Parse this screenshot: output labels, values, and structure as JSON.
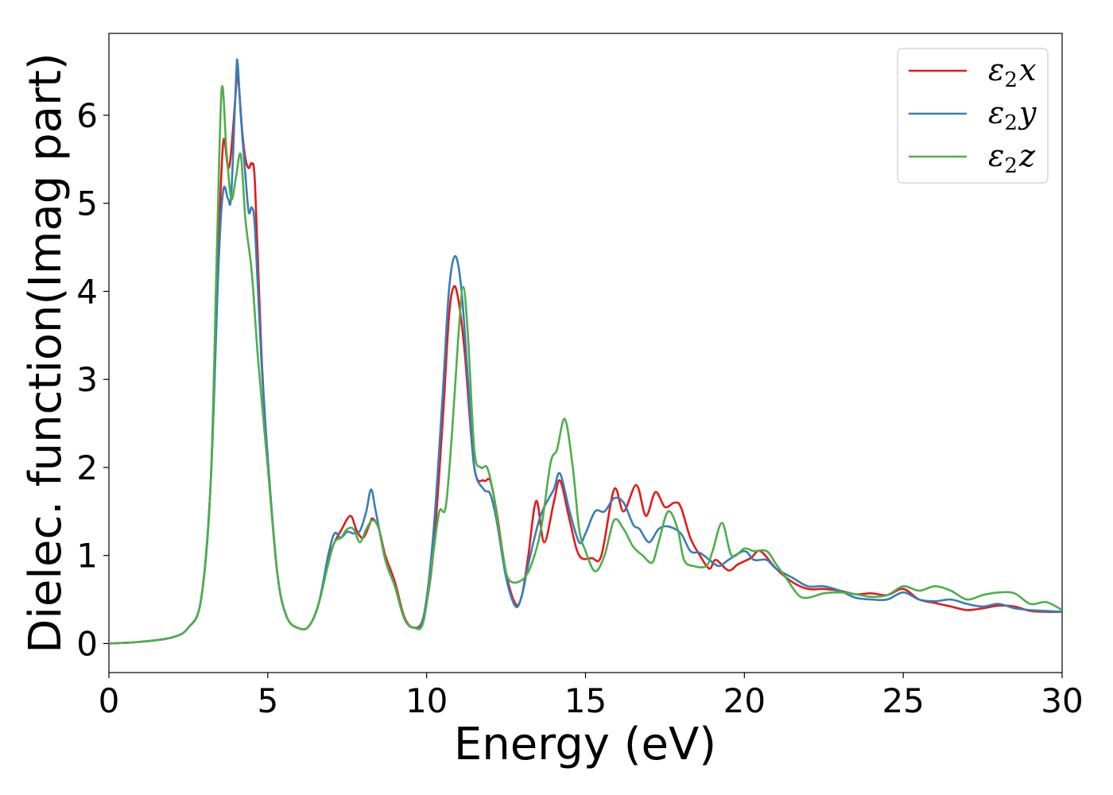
{
  "chart_data": {
    "type": "line",
    "title": "",
    "xlabel": "Energy (eV)",
    "ylabel": "Dielec. function(Imag part)",
    "xlim": [
      0,
      30
    ],
    "ylim": [
      -0.33,
      6.93
    ],
    "xticks": [
      0,
      5,
      10,
      15,
      20,
      25,
      30
    ],
    "yticks": [
      0,
      1,
      2,
      3,
      4,
      5,
      6
    ],
    "grid": false,
    "legend_position": "top-right",
    "series": [
      {
        "name": "ε2x",
        "legend_base": "ε",
        "legend_sub": "2",
        "legend_var": "x",
        "color": "#e41a1c",
        "points": [
          [
            0,
            0.0
          ],
          [
            1,
            0.02
          ],
          [
            2,
            0.07
          ],
          [
            2.5,
            0.18
          ],
          [
            2.9,
            0.5
          ],
          [
            3.2,
            1.8
          ],
          [
            3.45,
            4.5
          ],
          [
            3.6,
            5.7
          ],
          [
            3.75,
            5.4
          ],
          [
            3.85,
            5.6
          ],
          [
            4.0,
            6.3
          ],
          [
            4.05,
            6.5
          ],
          [
            4.2,
            5.8
          ],
          [
            4.3,
            5.5
          ],
          [
            4.4,
            5.4
          ],
          [
            4.5,
            5.45
          ],
          [
            4.6,
            5.2
          ],
          [
            4.8,
            3.3
          ],
          [
            5.0,
            2.1
          ],
          [
            5.3,
            0.8
          ],
          [
            5.6,
            0.3
          ],
          [
            6.0,
            0.17
          ],
          [
            6.3,
            0.2
          ],
          [
            6.6,
            0.45
          ],
          [
            6.9,
            0.95
          ],
          [
            7.1,
            1.15
          ],
          [
            7.3,
            1.28
          ],
          [
            7.6,
            1.45
          ],
          [
            7.8,
            1.28
          ],
          [
            8.0,
            1.2
          ],
          [
            8.2,
            1.35
          ],
          [
            8.3,
            1.42
          ],
          [
            8.5,
            1.3
          ],
          [
            8.7,
            1.0
          ],
          [
            9.0,
            0.7
          ],
          [
            9.3,
            0.3
          ],
          [
            9.6,
            0.18
          ],
          [
            9.9,
            0.3
          ],
          [
            10.2,
            1.0
          ],
          [
            10.5,
            2.5
          ],
          [
            10.7,
            3.7
          ],
          [
            10.85,
            4.05
          ],
          [
            11.0,
            3.9
          ],
          [
            11.2,
            3.3
          ],
          [
            11.5,
            2.0
          ],
          [
            11.8,
            1.85
          ],
          [
            12.0,
            1.85
          ],
          [
            12.2,
            1.5
          ],
          [
            12.5,
            0.8
          ],
          [
            12.8,
            0.45
          ],
          [
            13.0,
            0.55
          ],
          [
            13.2,
            1.0
          ],
          [
            13.45,
            1.62
          ],
          [
            13.7,
            1.15
          ],
          [
            14.0,
            1.6
          ],
          [
            14.2,
            1.85
          ],
          [
            14.5,
            1.4
          ],
          [
            14.8,
            1.0
          ],
          [
            15.2,
            0.97
          ],
          [
            15.5,
            1.0
          ],
          [
            15.9,
            1.75
          ],
          [
            16.2,
            1.5
          ],
          [
            16.6,
            1.8
          ],
          [
            16.9,
            1.45
          ],
          [
            17.2,
            1.72
          ],
          [
            17.5,
            1.55
          ],
          [
            17.8,
            1.6
          ],
          [
            18.0,
            1.55
          ],
          [
            18.3,
            1.2
          ],
          [
            18.6,
            1.0
          ],
          [
            18.9,
            0.85
          ],
          [
            19.1,
            0.95
          ],
          [
            19.5,
            0.83
          ],
          [
            19.8,
            0.9
          ],
          [
            20.2,
            0.97
          ],
          [
            20.5,
            1.05
          ],
          [
            21.0,
            0.85
          ],
          [
            21.5,
            0.7
          ],
          [
            22.0,
            0.62
          ],
          [
            22.5,
            0.62
          ],
          [
            23.0,
            0.6
          ],
          [
            23.5,
            0.56
          ],
          [
            24.0,
            0.57
          ],
          [
            24.5,
            0.55
          ],
          [
            25.0,
            0.62
          ],
          [
            25.5,
            0.5
          ],
          [
            26.0,
            0.46
          ],
          [
            26.5,
            0.42
          ],
          [
            27.0,
            0.38
          ],
          [
            27.5,
            0.4
          ],
          [
            28.0,
            0.43
          ],
          [
            28.5,
            0.42
          ],
          [
            29.0,
            0.37
          ],
          [
            29.5,
            0.36
          ],
          [
            30.0,
            0.36
          ]
        ]
      },
      {
        "name": "ε2y",
        "legend_base": "ε",
        "legend_sub": "2",
        "legend_var": "y",
        "color": "#377eb8",
        "points": [
          [
            0,
            0.0
          ],
          [
            1,
            0.02
          ],
          [
            2,
            0.07
          ],
          [
            2.5,
            0.18
          ],
          [
            2.9,
            0.5
          ],
          [
            3.2,
            1.8
          ],
          [
            3.45,
            4.3
          ],
          [
            3.6,
            5.15
          ],
          [
            3.75,
            5.05
          ],
          [
            3.85,
            5.1
          ],
          [
            4.0,
            6.4
          ],
          [
            4.05,
            6.6
          ],
          [
            4.15,
            6.0
          ],
          [
            4.3,
            5.3
          ],
          [
            4.4,
            4.9
          ],
          [
            4.5,
            4.95
          ],
          [
            4.6,
            4.7
          ],
          [
            4.8,
            3.2
          ],
          [
            5.0,
            2.1
          ],
          [
            5.3,
            0.8
          ],
          [
            5.6,
            0.3
          ],
          [
            6.0,
            0.17
          ],
          [
            6.3,
            0.2
          ],
          [
            6.6,
            0.45
          ],
          [
            6.9,
            1.0
          ],
          [
            7.1,
            1.25
          ],
          [
            7.3,
            1.2
          ],
          [
            7.5,
            1.27
          ],
          [
            7.7,
            1.25
          ],
          [
            7.9,
            1.28
          ],
          [
            8.1,
            1.5
          ],
          [
            8.25,
            1.75
          ],
          [
            8.4,
            1.5
          ],
          [
            8.7,
            0.95
          ],
          [
            9.0,
            0.65
          ],
          [
            9.3,
            0.28
          ],
          [
            9.6,
            0.18
          ],
          [
            9.9,
            0.3
          ],
          [
            10.2,
            1.2
          ],
          [
            10.5,
            2.8
          ],
          [
            10.7,
            4.0
          ],
          [
            10.9,
            4.4
          ],
          [
            11.1,
            4.0
          ],
          [
            11.3,
            3.0
          ],
          [
            11.5,
            2.0
          ],
          [
            11.8,
            1.75
          ],
          [
            12.0,
            1.7
          ],
          [
            12.2,
            1.4
          ],
          [
            12.5,
            0.75
          ],
          [
            12.8,
            0.42
          ],
          [
            13.0,
            0.55
          ],
          [
            13.2,
            0.9
          ],
          [
            13.5,
            1.35
          ],
          [
            13.7,
            1.55
          ],
          [
            14.0,
            1.75
          ],
          [
            14.2,
            1.93
          ],
          [
            14.5,
            1.5
          ],
          [
            14.8,
            1.15
          ],
          [
            15.0,
            1.25
          ],
          [
            15.3,
            1.5
          ],
          [
            15.6,
            1.5
          ],
          [
            15.9,
            1.65
          ],
          [
            16.2,
            1.6
          ],
          [
            16.5,
            1.35
          ],
          [
            16.7,
            1.3
          ],
          [
            17.0,
            1.15
          ],
          [
            17.3,
            1.3
          ],
          [
            17.6,
            1.33
          ],
          [
            18.0,
            1.25
          ],
          [
            18.3,
            1.05
          ],
          [
            18.6,
            1.03
          ],
          [
            18.9,
            0.95
          ],
          [
            19.2,
            0.88
          ],
          [
            19.5,
            0.95
          ],
          [
            20.0,
            1.05
          ],
          [
            20.3,
            0.95
          ],
          [
            20.7,
            0.95
          ],
          [
            21.0,
            0.85
          ],
          [
            21.5,
            0.75
          ],
          [
            22.0,
            0.65
          ],
          [
            22.5,
            0.65
          ],
          [
            23.0,
            0.6
          ],
          [
            23.5,
            0.52
          ],
          [
            24.0,
            0.5
          ],
          [
            24.5,
            0.5
          ],
          [
            25.0,
            0.58
          ],
          [
            25.5,
            0.5
          ],
          [
            26.0,
            0.48
          ],
          [
            26.5,
            0.5
          ],
          [
            27.0,
            0.45
          ],
          [
            27.5,
            0.42
          ],
          [
            28.0,
            0.45
          ],
          [
            28.5,
            0.4
          ],
          [
            29.0,
            0.38
          ],
          [
            29.5,
            0.37
          ],
          [
            30.0,
            0.36
          ]
        ]
      },
      {
        "name": "ε2z",
        "legend_base": "ε",
        "legend_sub": "2",
        "legend_var": "z",
        "color": "#4daf4a",
        "points": [
          [
            0,
            0.0
          ],
          [
            1,
            0.02
          ],
          [
            2,
            0.07
          ],
          [
            2.5,
            0.18
          ],
          [
            2.9,
            0.5
          ],
          [
            3.2,
            1.8
          ],
          [
            3.4,
            4.5
          ],
          [
            3.55,
            6.3
          ],
          [
            3.7,
            5.6
          ],
          [
            3.85,
            5.05
          ],
          [
            4.0,
            5.3
          ],
          [
            4.15,
            5.55
          ],
          [
            4.3,
            4.8
          ],
          [
            4.5,
            4.2
          ],
          [
            4.7,
            3.2
          ],
          [
            5.0,
            2.0
          ],
          [
            5.3,
            0.8
          ],
          [
            5.6,
            0.3
          ],
          [
            6.0,
            0.17
          ],
          [
            6.3,
            0.2
          ],
          [
            6.6,
            0.45
          ],
          [
            6.9,
            0.9
          ],
          [
            7.1,
            1.15
          ],
          [
            7.3,
            1.2
          ],
          [
            7.5,
            1.3
          ],
          [
            7.7,
            1.3
          ],
          [
            7.9,
            1.15
          ],
          [
            8.1,
            1.3
          ],
          [
            8.3,
            1.4
          ],
          [
            8.5,
            1.3
          ],
          [
            8.7,
            0.95
          ],
          [
            9.0,
            0.65
          ],
          [
            9.3,
            0.28
          ],
          [
            9.6,
            0.18
          ],
          [
            9.9,
            0.25
          ],
          [
            10.2,
            1.0
          ],
          [
            10.4,
            1.5
          ],
          [
            10.6,
            1.55
          ],
          [
            10.8,
            2.4
          ],
          [
            11.0,
            3.5
          ],
          [
            11.15,
            4.05
          ],
          [
            11.3,
            3.5
          ],
          [
            11.5,
            2.2
          ],
          [
            11.7,
            2.0
          ],
          [
            11.9,
            2.0
          ],
          [
            12.1,
            1.7
          ],
          [
            12.4,
            1.0
          ],
          [
            12.6,
            0.72
          ],
          [
            13.0,
            0.72
          ],
          [
            13.3,
            0.9
          ],
          [
            13.6,
            1.3
          ],
          [
            13.9,
            2.05
          ],
          [
            14.1,
            2.2
          ],
          [
            14.35,
            2.55
          ],
          [
            14.6,
            2.0
          ],
          [
            14.8,
            1.3
          ],
          [
            15.0,
            1.05
          ],
          [
            15.3,
            0.82
          ],
          [
            15.6,
            1.0
          ],
          [
            15.9,
            1.4
          ],
          [
            16.2,
            1.3
          ],
          [
            16.5,
            1.1
          ],
          [
            16.8,
            1.0
          ],
          [
            17.1,
            0.92
          ],
          [
            17.3,
            1.15
          ],
          [
            17.6,
            1.5
          ],
          [
            17.9,
            1.3
          ],
          [
            18.1,
            0.95
          ],
          [
            18.4,
            0.88
          ],
          [
            18.8,
            0.88
          ],
          [
            19.0,
            1.05
          ],
          [
            19.3,
            1.37
          ],
          [
            19.6,
            1.0
          ],
          [
            20.0,
            1.08
          ],
          [
            20.3,
            1.05
          ],
          [
            20.7,
            1.05
          ],
          [
            21.0,
            0.9
          ],
          [
            21.3,
            0.75
          ],
          [
            21.7,
            0.55
          ],
          [
            22.0,
            0.52
          ],
          [
            22.5,
            0.57
          ],
          [
            23.0,
            0.58
          ],
          [
            23.5,
            0.56
          ],
          [
            24.0,
            0.53
          ],
          [
            24.5,
            0.55
          ],
          [
            25.0,
            0.65
          ],
          [
            25.5,
            0.6
          ],
          [
            26.0,
            0.65
          ],
          [
            26.5,
            0.6
          ],
          [
            27.0,
            0.5
          ],
          [
            27.5,
            0.55
          ],
          [
            28.0,
            0.58
          ],
          [
            28.5,
            0.57
          ],
          [
            29.0,
            0.45
          ],
          [
            29.5,
            0.47
          ],
          [
            30.0,
            0.38
          ]
        ]
      }
    ]
  }
}
